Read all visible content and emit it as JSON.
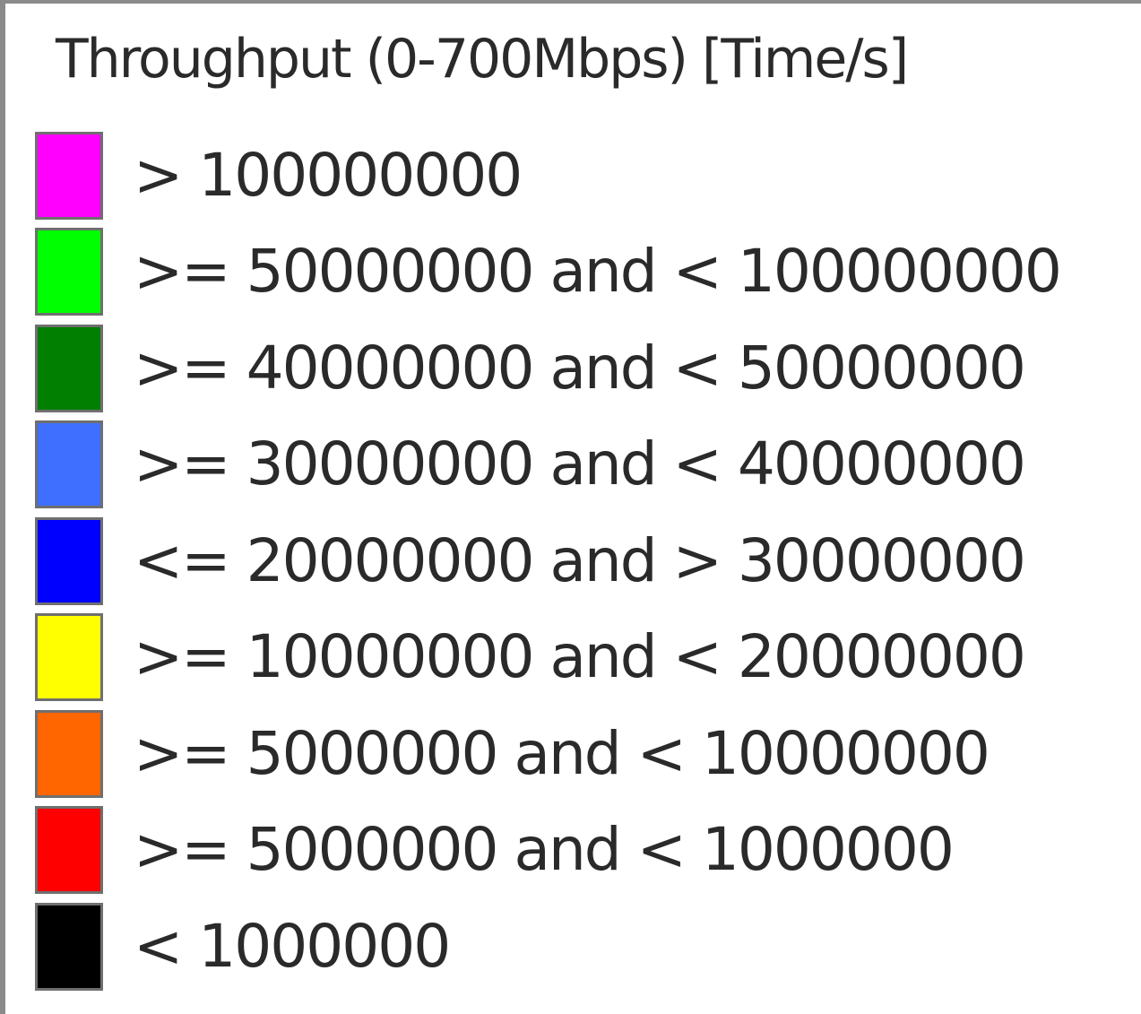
{
  "legend": {
    "title": "Throughput (0-700Mbps) [Time/s]",
    "items": [
      {
        "label": "> 100000000",
        "color": "#ff00ff"
      },
      {
        "label": ">= 50000000 and < 100000000",
        "color": "#00ff00"
      },
      {
        "label": ">= 40000000 and < 50000000",
        "color": "#007f00"
      },
      {
        "label": ">= 30000000 and < 40000000",
        "color": "#3f6fff"
      },
      {
        "label": "<= 20000000 and > 30000000",
        "color": "#0000ff"
      },
      {
        "label": ">= 10000000 and < 20000000",
        "color": "#ffff00"
      },
      {
        "label": ">= 5000000 and < 10000000",
        "color": "#ff6600"
      },
      {
        "label": ">= 5000000 and < 1000000",
        "color": "#ff0000"
      },
      {
        "label": "< 1000000",
        "color": "#000000"
      }
    ]
  }
}
